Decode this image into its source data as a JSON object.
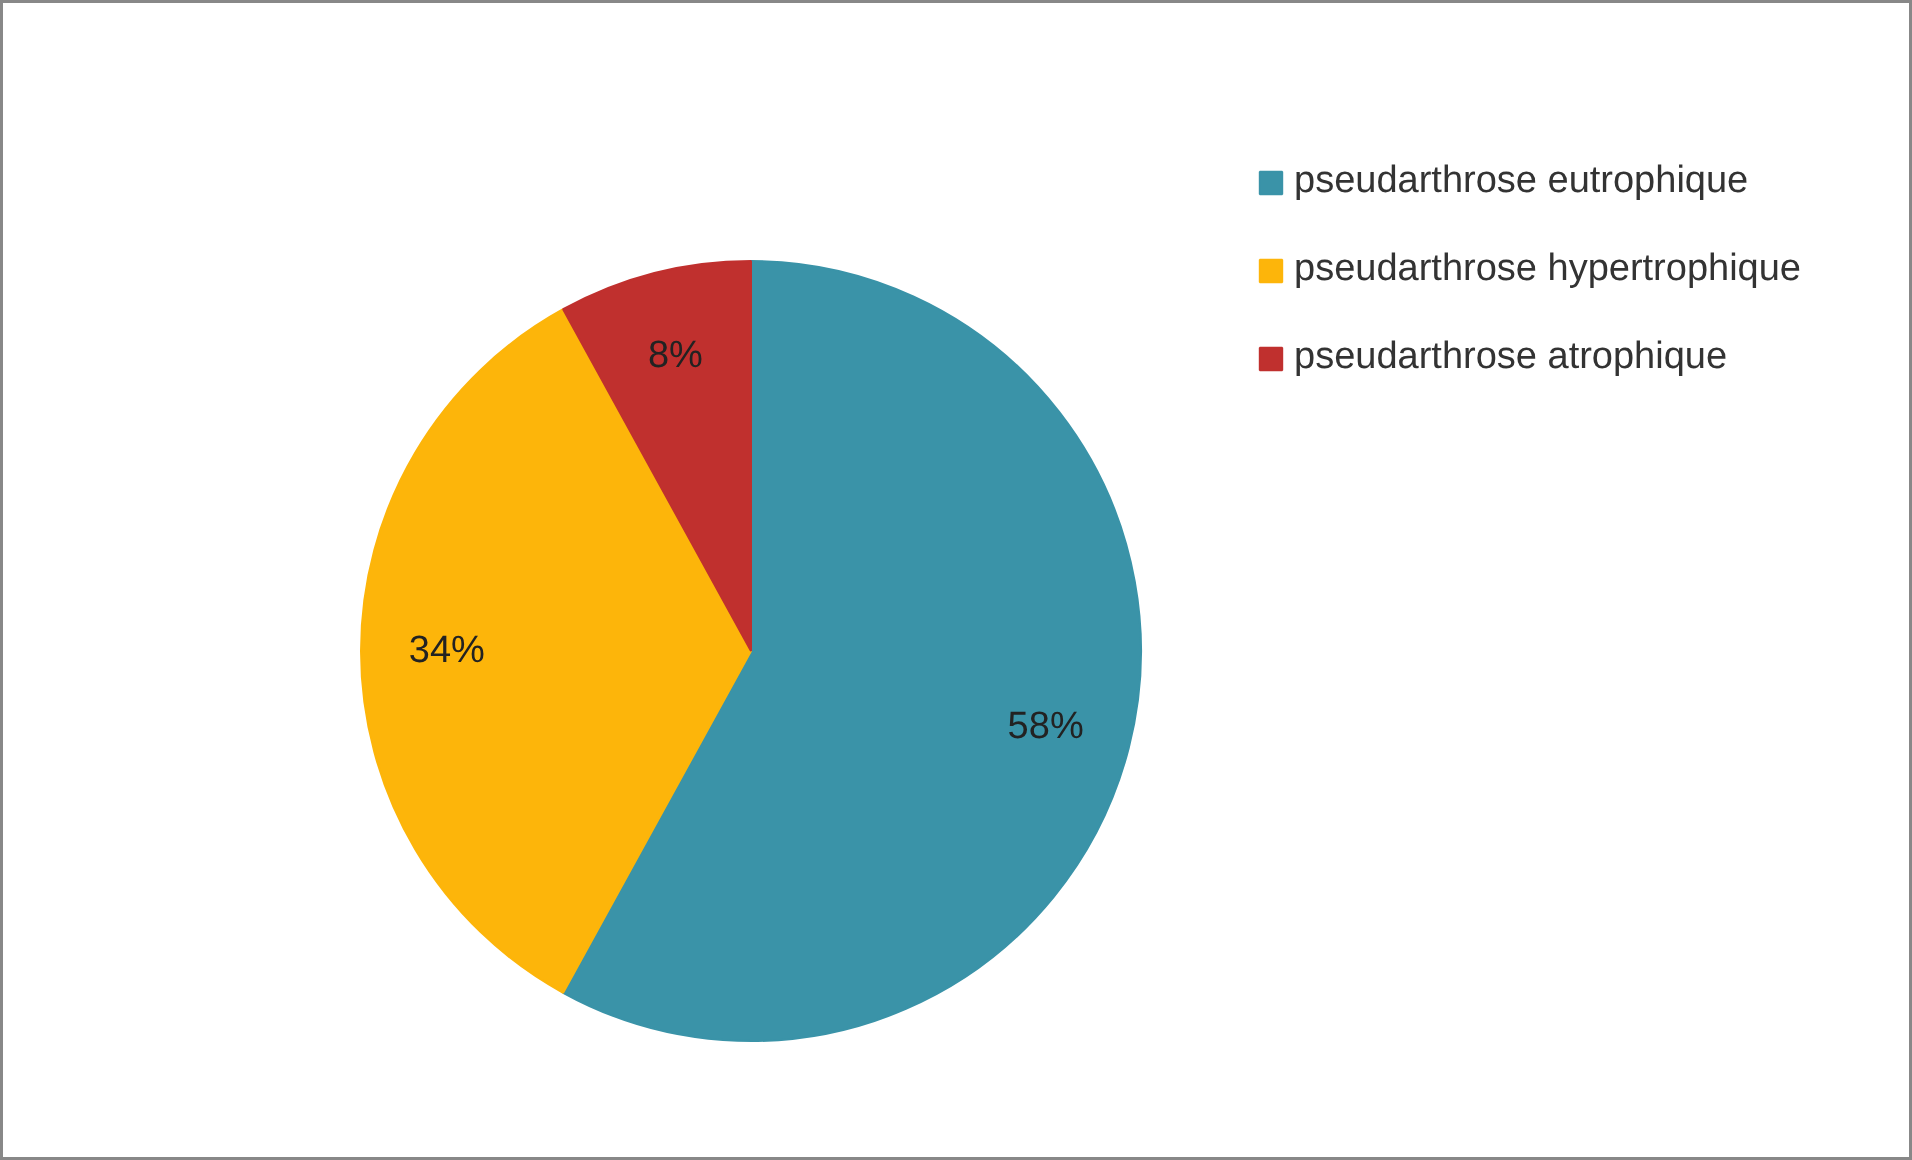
{
  "chart_data": {
    "type": "pie",
    "categories": [
      "pseudarthrose eutrophique",
      "pseudarthrose hypertrophique",
      "pseudarthrose atrophique"
    ],
    "values": [
      58,
      34,
      8
    ],
    "colors": [
      "#3a93a8",
      "#fdb50a",
      "#c0302e"
    ],
    "value_labels": [
      "58%",
      "34%",
      "8%"
    ],
    "legend": "right"
  }
}
